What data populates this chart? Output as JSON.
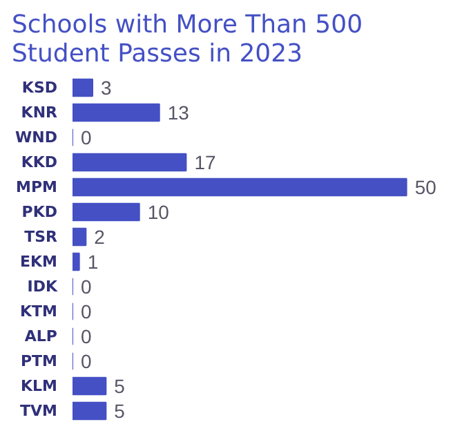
{
  "chart_data": {
    "type": "bar",
    "orientation": "horizontal",
    "title": "Schools with More Than 500\nStudent Passes in 2023",
    "categories": [
      "KSD",
      "KNR",
      "WND",
      "KKD",
      "MPM",
      "PKD",
      "TSR",
      "EKM",
      "IDK",
      "KTM",
      "ALP",
      "PTM",
      "KLM",
      "TVM"
    ],
    "values": [
      3,
      13,
      0,
      17,
      50,
      10,
      2,
      1,
      0,
      0,
      0,
      0,
      5,
      5
    ],
    "color": "#4450c4",
    "data_labels": true,
    "grid": false
  }
}
